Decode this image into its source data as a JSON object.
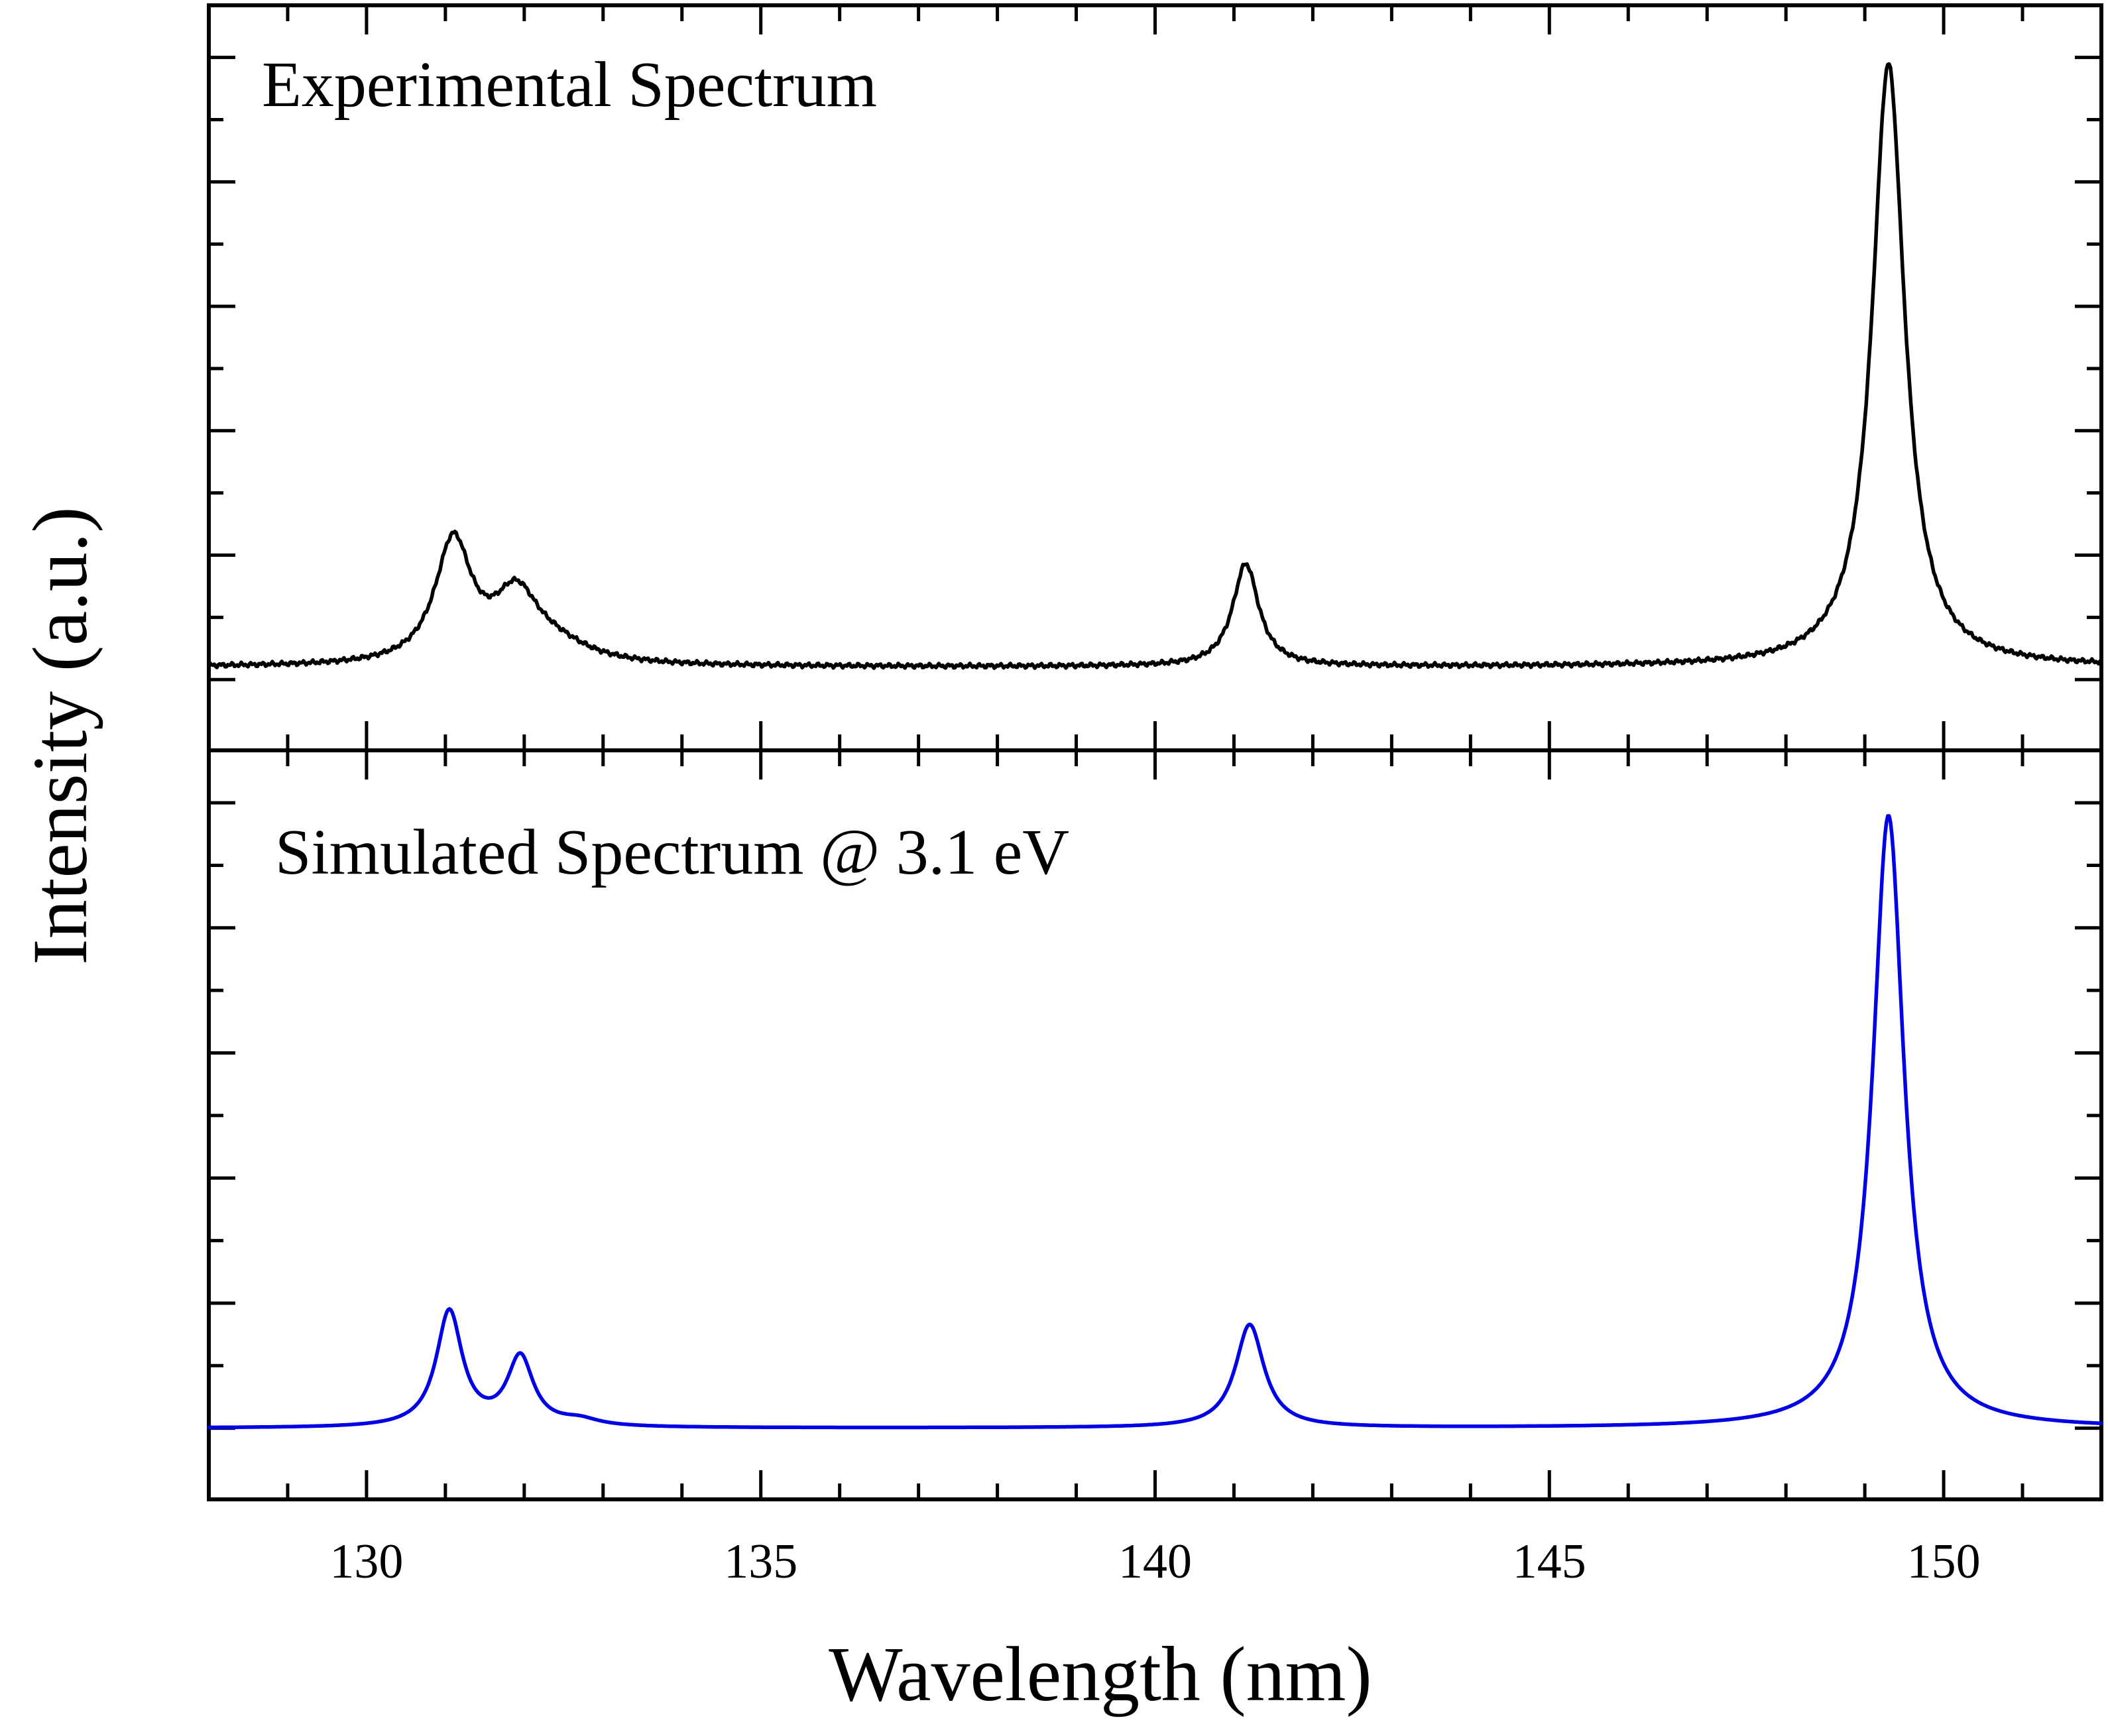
{
  "chart_data": [
    {
      "type": "line",
      "title": "Experimental Spectrum",
      "xlabel": "Wavelength (nm)",
      "ylabel": "Intensity (a.u.)",
      "xlim": [
        128,
        152
      ],
      "x_ticks": [
        130,
        135,
        140,
        145,
        150
      ],
      "grid": false,
      "series": [
        {
          "color": "#000000",
          "peaks": [
            {
              "center": 131.1,
              "amplitude": 0.195,
              "width": 0.28
            },
            {
              "center": 131.9,
              "amplitude": 0.105,
              "width": 0.35
            },
            {
              "center": 132.4,
              "amplitude": 0.025,
              "width": 0.55
            },
            {
              "center": 141.15,
              "amplitude": 0.165,
              "width": 0.2
            },
            {
              "center": 149.3,
              "amplitude": 0.97,
              "width": 0.25
            }
          ],
          "baseline": 0.02
        }
      ]
    },
    {
      "type": "line",
      "title": "Simulated Spectrum @ 3.1 eV",
      "xlabel": "Wavelength (nm)",
      "ylabel": "Intensity (a.u.)",
      "xlim": [
        128,
        152
      ],
      "x_ticks": [
        130,
        135,
        140,
        145,
        150
      ],
      "grid": false,
      "series": [
        {
          "color": "#0000e6",
          "peaks": [
            {
              "center": 131.05,
              "amplitude": 0.185,
              "width": 0.2
            },
            {
              "center": 131.95,
              "amplitude": 0.11,
              "width": 0.2
            },
            {
              "center": 132.7,
              "amplitude": 0.01,
              "width": 0.3
            },
            {
              "center": 141.2,
              "amplitude": 0.165,
              "width": 0.22
            },
            {
              "center": 149.3,
              "amplitude": 0.98,
              "width": 0.24
            }
          ],
          "baseline": 0.0
        }
      ]
    }
  ]
}
